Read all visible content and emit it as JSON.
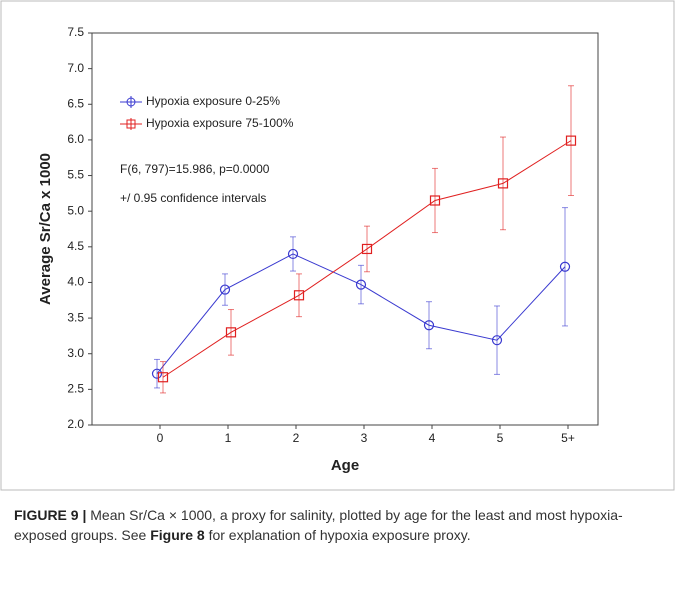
{
  "chart_data": {
    "type": "line",
    "x_label": "Age",
    "y_label": "Average Sr/Ca x 1000",
    "categories": [
      "0",
      "1",
      "2",
      "3",
      "4",
      "5",
      "5+"
    ],
    "series": [
      {
        "name": "Hypoxia exposure 0-25%",
        "color": "#3a3ad0",
        "values": [
          2.72,
          3.9,
          4.4,
          3.97,
          3.4,
          3.19,
          4.22
        ],
        "errors": [
          0.2,
          0.22,
          0.24,
          0.27,
          0.33,
          0.48,
          0.83
        ]
      },
      {
        "name": "Hypoxia exposure 75-100%",
        "color": "#e02020",
        "values": [
          2.67,
          3.3,
          3.82,
          4.47,
          5.15,
          5.39,
          5.99
        ],
        "errors": [
          0.22,
          0.32,
          0.3,
          0.32,
          0.45,
          0.65,
          0.77
        ]
      }
    ],
    "ylim": [
      2,
      7.5
    ],
    "yticks": [
      {
        "value": 2,
        "label": "2.0"
      },
      2.5,
      {
        "value": 3,
        "label": "3.0"
      },
      3.5,
      {
        "value": 4,
        "label": "4.0"
      },
      4.5,
      {
        "value": 5,
        "label": "5.0"
      },
      5.5,
      {
        "value": 6,
        "label": "6.0"
      },
      6.5,
      {
        "value": 7,
        "label": "7.0"
      },
      7.5
    ],
    "annotations": [
      "F(6, 797)=15.986, p=0.0000",
      "+/ 0.95 confidence intervals"
    ],
    "legend": "upper left"
  },
  "caption": {
    "label": "FIGURE 9 |",
    "text_1": "Mean Sr/Ca × 1000, a proxy for salinity, plotted by age for the least and most hypoxia-exposed groups. See",
    "ref": "Figure 8",
    "text_2": "for explanation of hypoxia exposure proxy."
  }
}
